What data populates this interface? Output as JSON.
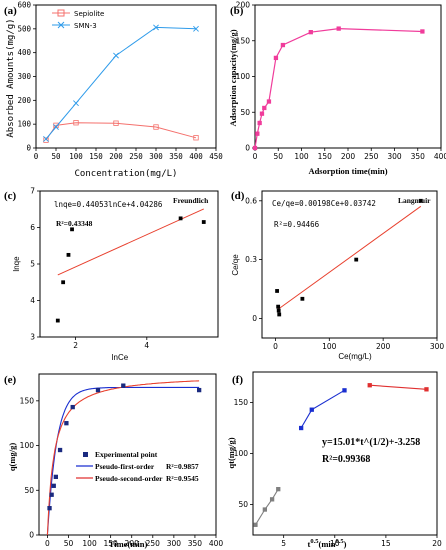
{
  "panels": {
    "a": {
      "label": "(a)",
      "xlabel": "Concentration(mg/L)",
      "ylabel": "Absorbed Amounts(mg/g)"
    },
    "b": {
      "label": "(b)",
      "xlabel": "Adsorption time(min)",
      "ylabel": "Adsorption capacity(mg/g)"
    },
    "c": {
      "label": "(c)",
      "xlabel": "lnCe",
      "ylabel": "lnqe",
      "equation": "lnqe=0.44053lnCe+4.04286",
      "r2": "R²=0.43348",
      "model": "Freundlich"
    },
    "d": {
      "label": "(d)",
      "xlabel": "Ce(mg/L)",
      "ylabel": "Ce/qe",
      "equation": "Ce/qe=0.00198Ce+0.03742",
      "r2": "R²=0.94466",
      "model": "Langmuir"
    },
    "e": {
      "label": "(e)",
      "xlabel": "Time(min)",
      "ylabel": "q(mg/g)"
    },
    "f": {
      "label": "(f)",
      "xlabel": "t0.5(min0.5)",
      "ylabel": "qt(mg/g)",
      "equation": "y=15.01*t^(1/2)+-3.258",
      "r2": "R²=0.99368"
    }
  },
  "colors": {
    "sepiolite": "#F4706C",
    "smn3": "#2E9BEA",
    "pink": "#F03C9B",
    "fit_red": "#E8402E",
    "blue_fit": "#1a2fd0",
    "point": "#1a2a80"
  },
  "chart_data": [
    {
      "type": "line",
      "xlabel": "Concentration(mg/L)",
      "ylabel": "Absorbed Amounts(mg/g)",
      "xlim": [
        0,
        450
      ],
      "ylim": [
        0,
        600
      ],
      "xticks": [
        0,
        50,
        100,
        150,
        200,
        250,
        300,
        350,
        400,
        450
      ],
      "yticks": [
        0,
        100,
        200,
        300,
        400,
        500,
        600
      ],
      "legend_position": "top-left",
      "series": [
        {
          "name": "Sepiolite",
          "marker": "square",
          "x": [
            25,
            50,
            100,
            200,
            300,
            400
          ],
          "y": [
            33,
            95,
            106,
            104,
            88,
            43
          ]
        },
        {
          "name": "SMN-3",
          "marker": "x",
          "x": [
            25,
            50,
            100,
            200,
            300,
            400
          ],
          "y": [
            38,
            88,
            188,
            388,
            506,
            500
          ]
        }
      ]
    },
    {
      "type": "line",
      "xlabel": "Adsorption time(min)",
      "ylabel": "Adsorption capacity(mg/g)",
      "xlim": [
        0,
        400
      ],
      "ylim": [
        0,
        200
      ],
      "xticks": [
        0,
        50,
        100,
        150,
        200,
        250,
        300,
        350,
        400
      ],
      "yticks": [
        0,
        50,
        100,
        150,
        200
      ],
      "series": [
        {
          "marker": "square",
          "x": [
            0,
            5,
            10,
            15,
            20,
            30,
            45,
            60,
            120,
            180,
            360
          ],
          "y": [
            0,
            20,
            35,
            48,
            56,
            65,
            126,
            144,
            162,
            167,
            163
          ]
        }
      ]
    },
    {
      "type": "scatter",
      "xlabel": "lnCe",
      "ylabel": "lnqe",
      "xlim": [
        1,
        6
      ],
      "ylim": [
        3,
        7
      ],
      "xticks": [
        2,
        4
      ],
      "yticks": [
        3,
        4,
        5,
        6,
        7
      ],
      "points": {
        "x": [
          1.5,
          1.65,
          1.8,
          1.9,
          4.95,
          5.6
        ],
        "y": [
          3.45,
          4.5,
          5.25,
          5.95,
          6.25,
          6.15
        ]
      },
      "fit": {
        "x": [
          1.5,
          5.6
        ],
        "y": [
          4.7,
          6.51
        ]
      }
    },
    {
      "type": "scatter",
      "xlabel": "Ce(mg/L)",
      "ylabel": "Ce/qe",
      "xlim": [
        -25,
        300
      ],
      "ylim": [
        -0.1,
        0.65
      ],
      "xticks": [
        0,
        100,
        200,
        300
      ],
      "yticks": [
        0.0,
        0.3,
        0.6
      ],
      "points": {
        "x": [
          3,
          5,
          6,
          7,
          50,
          150,
          270
        ],
        "y": [
          0.14,
          0.06,
          0.04,
          0.02,
          0.1,
          0.3,
          0.6
        ]
      },
      "fit": {
        "x": [
          3,
          270
        ],
        "y": [
          0.043,
          0.572
        ]
      }
    },
    {
      "type": "scatter",
      "xlabel": "Time(min)",
      "ylabel": "q(mg/g)",
      "xlim": [
        -20,
        400
      ],
      "ylim": [
        0,
        180
      ],
      "xticks": [
        0,
        50,
        100,
        150,
        200,
        250,
        300,
        350,
        400
      ],
      "yticks": [
        0,
        50,
        100,
        150
      ],
      "legend": [
        "Experimental point",
        "Pseudo-first-order",
        "Pseudo-second-order"
      ],
      "legend_r2": [
        "R²=0.9857",
        "R²=0.9545"
      ],
      "points": {
        "x": [
          5,
          10,
          15,
          20,
          30,
          45,
          60,
          120,
          180,
          360
        ],
        "y": [
          30,
          45,
          55,
          65,
          95,
          125,
          143,
          162,
          167,
          162
        ]
      },
      "pfo": {
        "qe": 165,
        "k": 0.045
      },
      "pso": {
        "qe": 180,
        "k": 0.00035
      }
    },
    {
      "type": "scatter",
      "xlabel": "t0.5(min0.5)",
      "ylabel": "qt(mg/g)",
      "xlim": [
        2,
        20
      ],
      "ylim": [
        20,
        180
      ],
      "xticks": [
        5,
        10,
        15,
        20
      ],
      "yticks": [
        50,
        100,
        150
      ],
      "segments": [
        {
          "color": "gray",
          "x": [
            2.24,
            3.16,
            3.87,
            4.47
          ],
          "y": [
            30,
            45,
            55,
            65
          ]
        },
        {
          "color": "blue",
          "x": [
            6.71,
            7.75,
            10.95
          ],
          "y": [
            125,
            143,
            162
          ]
        },
        {
          "color": "red",
          "x": [
            13.42,
            18.97
          ],
          "y": [
            167,
            163
          ]
        }
      ]
    }
  ]
}
